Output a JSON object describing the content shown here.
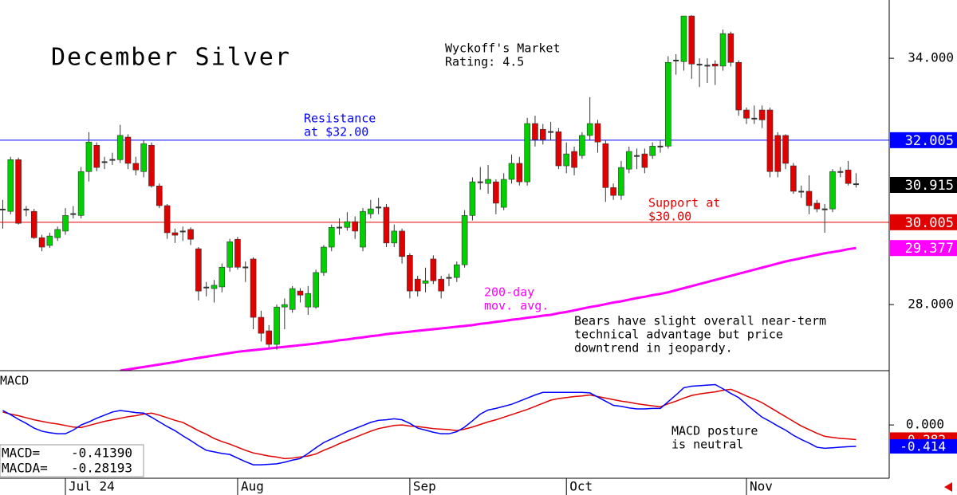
{
  "chart_data": [
    {
      "type": "candlestick",
      "title": "December Silver",
      "up_color": "#00d000",
      "down_color": "#e00000",
      "categories": [
        null,
        null,
        null,
        null,
        null,
        null,
        null,
        null,
        "Jul 24",
        null,
        null,
        null,
        null,
        null,
        null,
        null,
        null,
        null,
        null,
        null,
        null,
        null,
        null,
        null,
        null,
        null,
        null,
        null,
        null,
        null,
        "Aug",
        null,
        null,
        null,
        null,
        null,
        null,
        null,
        null,
        null,
        null,
        null,
        null,
        null,
        null,
        null,
        null,
        null,
        null,
        null,
        null,
        null,
        "Sep",
        null,
        null,
        null,
        null,
        null,
        null,
        null,
        null,
        null,
        null,
        null,
        null,
        null,
        null,
        null,
        null,
        null,
        null,
        null,
        "Oct",
        null,
        null,
        null,
        null,
        null,
        null,
        null,
        null,
        null,
        null,
        null,
        null,
        null,
        null,
        null,
        null,
        null,
        null,
        null,
        null,
        null,
        null,
        "Nov",
        null,
        null,
        null,
        null,
        null,
        null,
        null,
        null,
        null,
        null,
        null,
        null,
        null,
        null
      ],
      "open": [
        30.3,
        30.27,
        31.53,
        30.3,
        30.27,
        29.63,
        29.44,
        29.63,
        29.79,
        30.2,
        30.17,
        31.24,
        31.88,
        31.46,
        31.52,
        31.53,
        32.08,
        31.44,
        31.24,
        31.88,
        30.89,
        30.41,
        29.75,
        29.77,
        29.83,
        29.36,
        28.4,
        28.39,
        28.43,
        28.91,
        29.59,
        28.9,
        29.11,
        27.69,
        27.36,
        27.03,
        27.94,
        27.88,
        28.33,
        27.94,
        27.94,
        28.78,
        29.4,
        29.87,
        29.88,
        30.02,
        29.4,
        30.21,
        30.36,
        30.37,
        29.5,
        29.79,
        29.2,
        28.62,
        28.52,
        29.11,
        28.62,
        28.64,
        28.66,
        28.97,
        30.17,
        30.97,
        30.95,
        30.99,
        30.37,
        31.05,
        31.44,
        30.99,
        32.41,
        32.27,
        32.2,
        32.21,
        31.38,
        31.73,
        31.63,
        32.12,
        32.41,
        31.92,
        30.85,
        30.66,
        31.3,
        31.61,
        31.67,
        31.63,
        31.84,
        31.86,
        33.93,
        33.92,
        35.03,
        33.86,
        33.81,
        33.86,
        33.81,
        34.6,
        33.9,
        32.74,
        32.52,
        32.74,
        32.74,
        32.12,
        32.12,
        31.38,
        30.74,
        30.76,
        30.47,
        30.31,
        30.33,
        31.22,
        31.28,
        30.95
      ],
      "high": [
        30.55,
        31.6,
        31.58,
        30.4,
        30.33,
        29.7,
        29.75,
        29.9,
        30.35,
        30.4,
        31.35,
        32.2,
        31.95,
        31.6,
        31.7,
        32.38,
        32.15,
        31.6,
        32.0,
        31.95,
        30.95,
        30.45,
        29.85,
        29.9,
        29.88,
        29.4,
        28.55,
        28.6,
        29.0,
        29.6,
        29.65,
        29.05,
        29.15,
        27.85,
        27.5,
        28.0,
        28.15,
        28.45,
        28.4,
        28.45,
        28.85,
        29.45,
        29.95,
        30.1,
        30.25,
        30.15,
        30.35,
        30.55,
        30.6,
        30.45,
        29.95,
        29.85,
        29.25,
        28.7,
        28.9,
        29.2,
        28.7,
        28.75,
        29.05,
        30.3,
        31.1,
        31.35,
        31.4,
        31.05,
        31.2,
        31.65,
        31.6,
        32.55,
        32.6,
        32.4,
        32.45,
        32.3,
        31.95,
        31.85,
        32.2,
        33.05,
        32.5,
        32.0,
        30.95,
        31.5,
        31.85,
        31.8,
        31.8,
        31.95,
        32.0,
        34.05,
        34.1,
        35.03,
        35.05,
        34.0,
        34.0,
        33.95,
        34.7,
        34.65,
        33.95,
        32.8,
        32.85,
        32.85,
        32.8,
        32.2,
        32.15,
        31.45,
        30.9,
        31.15,
        30.55,
        30.45,
        31.3,
        31.35,
        31.5,
        31.2
      ],
      "low": [
        29.85,
        30.2,
        29.95,
        30.15,
        29.6,
        29.3,
        29.38,
        29.55,
        29.7,
        30.1,
        30.1,
        31.0,
        31.25,
        31.3,
        31.4,
        31.45,
        31.3,
        31.15,
        31.1,
        30.85,
        30.35,
        29.6,
        29.5,
        29.55,
        29.45,
        28.1,
        28.2,
        28.05,
        28.3,
        28.8,
        28.85,
        28.55,
        27.4,
        27.1,
        26.95,
        26.9,
        27.4,
        27.8,
        28.05,
        27.75,
        27.9,
        28.7,
        29.3,
        29.7,
        29.8,
        29.6,
        29.3,
        30.1,
        30.2,
        29.4,
        29.4,
        29.0,
        28.15,
        28.2,
        28.3,
        28.5,
        28.15,
        28.45,
        28.55,
        28.9,
        30.05,
        30.8,
        30.7,
        30.2,
        30.3,
        30.95,
        30.9,
        30.9,
        31.85,
        31.9,
        32.0,
        31.3,
        31.2,
        31.15,
        31.55,
        32.0,
        31.7,
        30.5,
        30.55,
        30.55,
        31.2,
        31.3,
        31.2,
        31.55,
        31.7,
        31.8,
        33.6,
        33.7,
        33.5,
        33.3,
        33.4,
        33.35,
        33.7,
        33.8,
        32.6,
        32.4,
        32.4,
        32.3,
        31.1,
        31.1,
        31.3,
        30.7,
        30.6,
        30.2,
        30.25,
        29.75,
        30.25,
        31.1,
        30.9,
        30.85
      ],
      "close": [
        30.33,
        31.53,
        29.98,
        30.33,
        29.63,
        29.4,
        29.67,
        29.83,
        30.17,
        30.21,
        31.24,
        31.96,
        31.34,
        31.48,
        31.53,
        32.12,
        31.44,
        31.28,
        31.92,
        30.89,
        30.41,
        29.75,
        29.69,
        29.79,
        29.59,
        28.33,
        28.43,
        28.47,
        28.91,
        29.53,
        28.91,
        28.91,
        27.69,
        27.3,
        27.03,
        27.94,
        28.0,
        28.39,
        28.23,
        28.27,
        28.78,
        29.4,
        29.88,
        29.88,
        30.02,
        29.79,
        30.27,
        30.33,
        30.37,
        29.5,
        29.79,
        29.17,
        28.33,
        28.33,
        28.58,
        28.58,
        28.33,
        28.66,
        28.97,
        30.17,
        30.99,
        30.99,
        31.05,
        30.47,
        31.05,
        31.44,
        30.99,
        32.41,
        32.02,
        32.02,
        32.21,
        31.38,
        31.67,
        31.34,
        32.12,
        32.41,
        31.96,
        30.85,
        30.66,
        31.34,
        31.73,
        31.63,
        31.34,
        31.86,
        31.86,
        33.9,
        33.96,
        35.03,
        33.86,
        33.83,
        33.83,
        33.81,
        34.6,
        33.9,
        32.74,
        32.54,
        32.54,
        32.5,
        31.24,
        31.24,
        31.44,
        30.76,
        30.76,
        30.41,
        30.33,
        30.33,
        31.24,
        31.24,
        30.95,
        30.915
      ],
      "series": [
        {
          "name": "200-day mov. avg.",
          "color": "#ff00ff",
          "values": [
            null,
            null,
            null,
            null,
            null,
            null,
            null,
            null,
            null,
            null,
            null,
            null,
            null,
            null,
            null,
            26.39,
            26.42,
            26.45,
            26.48,
            26.51,
            26.54,
            26.57,
            26.6,
            26.64,
            26.67,
            26.7,
            26.73,
            26.76,
            26.79,
            26.82,
            26.85,
            26.87,
            26.89,
            26.91,
            26.93,
            26.95,
            26.97,
            26.99,
            27.01,
            27.03,
            27.05,
            27.08,
            27.1,
            27.13,
            27.15,
            27.18,
            27.2,
            27.23,
            27.25,
            27.28,
            27.3,
            27.32,
            27.34,
            27.36,
            27.38,
            27.4,
            27.42,
            27.44,
            27.46,
            27.48,
            27.5,
            27.53,
            27.55,
            27.58,
            27.6,
            27.63,
            27.65,
            27.68,
            27.7,
            27.73,
            27.75,
            27.79,
            27.82,
            27.86,
            27.9,
            27.94,
            27.97,
            28.01,
            28.05,
            28.08,
            28.12,
            28.16,
            28.19,
            28.23,
            28.26,
            28.3,
            28.35,
            28.4,
            28.45,
            28.5,
            28.55,
            28.6,
            28.65,
            28.7,
            28.75,
            28.8,
            28.85,
            28.9,
            28.95,
            29.0,
            29.05,
            29.09,
            29.13,
            29.17,
            29.21,
            29.25,
            29.28,
            29.31,
            29.35,
            29.377
          ]
        }
      ],
      "hlines": [
        {
          "value": 32.005,
          "color": "#0000ff"
        },
        {
          "value": 30.005,
          "color": "#e00000"
        }
      ],
      "last_box_color": "#000000",
      "ylim": [
        26.39,
        35.42
      ],
      "yticks": [
        {
          "value": 34,
          "label": "34.000"
        },
        {
          "value": 28,
          "label": "28.000"
        }
      ],
      "annotations": [
        {
          "lines": [
            "Wyckoff's Market",
            "Rating: 4.5"
          ],
          "color": "#000000"
        },
        {
          "lines": [
            "Resistance",
            "at $32.00"
          ],
          "color": "#0000ff"
        },
        {
          "lines": [
            "Support at",
            "$30.00"
          ],
          "color": "#e00000"
        },
        {
          "lines": [
            "200-day",
            "mov. avg."
          ],
          "color": "#ff00ff"
        },
        {
          "lines": [
            "Bears have slight overall near-term",
            "technical advantage but price",
            "downtrend in jeopardy."
          ],
          "color": "#000000"
        }
      ]
    },
    {
      "type": "line",
      "title": "MACD",
      "series": [
        {
          "name": "MACD=",
          "legend_value": "-0.41390",
          "end_label": "-0.414",
          "color": "#0000ff",
          "values": [
            0.28,
            0.2,
            0.11,
            0.03,
            -0.06,
            -0.12,
            -0.15,
            -0.17,
            -0.17,
            -0.1,
            0.0,
            0.06,
            0.13,
            0.19,
            0.25,
            0.28,
            0.26,
            0.24,
            0.23,
            0.15,
            0.06,
            -0.03,
            -0.11,
            -0.21,
            -0.3,
            -0.4,
            -0.49,
            -0.52,
            -0.55,
            -0.57,
            -0.64,
            -0.71,
            -0.77,
            -0.77,
            -0.76,
            -0.75,
            -0.72,
            -0.68,
            -0.65,
            -0.55,
            -0.44,
            -0.34,
            -0.27,
            -0.2,
            -0.13,
            -0.07,
            -0.01,
            0.05,
            0.09,
            0.1,
            0.12,
            0.1,
            0.03,
            -0.06,
            -0.1,
            -0.14,
            -0.17,
            -0.17,
            -0.13,
            -0.04,
            0.08,
            0.21,
            0.29,
            0.32,
            0.36,
            0.4,
            0.46,
            0.52,
            0.58,
            0.63,
            0.63,
            0.63,
            0.63,
            0.63,
            0.63,
            0.62,
            0.54,
            0.46,
            0.38,
            0.36,
            0.33,
            0.31,
            0.31,
            0.32,
            0.32,
            0.45,
            0.58,
            0.72,
            0.75,
            0.76,
            0.77,
            0.78,
            0.7,
            0.61,
            0.53,
            0.4,
            0.27,
            0.15,
            0.07,
            -0.02,
            -0.1,
            -0.2,
            -0.28,
            -0.35,
            -0.43,
            -0.45,
            -0.44,
            -0.43,
            -0.42,
            -0.4139
          ]
        },
        {
          "name": "MACDA=",
          "legend_value": "-0.28193",
          "end_label": "-0.282",
          "color": "#e00000",
          "values": [
            0.25,
            0.21,
            0.18,
            0.14,
            0.1,
            0.07,
            0.04,
            0.02,
            -0.01,
            -0.04,
            -0.05,
            -0.01,
            0.03,
            0.07,
            0.1,
            0.13,
            0.16,
            0.18,
            0.21,
            0.23,
            0.19,
            0.14,
            0.09,
            0.05,
            -0.03,
            -0.11,
            -0.18,
            -0.26,
            -0.32,
            -0.37,
            -0.43,
            -0.49,
            -0.54,
            -0.57,
            -0.6,
            -0.62,
            -0.65,
            -0.64,
            -0.62,
            -0.6,
            -0.56,
            -0.49,
            -0.43,
            -0.36,
            -0.3,
            -0.24,
            -0.18,
            -0.12,
            -0.07,
            -0.04,
            -0.01,
            0.0,
            -0.02,
            -0.03,
            -0.05,
            -0.07,
            -0.08,
            -0.09,
            -0.11,
            -0.08,
            -0.04,
            0.01,
            0.06,
            0.1,
            0.15,
            0.2,
            0.25,
            0.3,
            0.36,
            0.42,
            0.48,
            0.51,
            0.53,
            0.55,
            0.56,
            0.58,
            0.55,
            0.52,
            0.49,
            0.46,
            0.44,
            0.41,
            0.39,
            0.37,
            0.35,
            0.41,
            0.46,
            0.52,
            0.57,
            0.6,
            0.62,
            0.64,
            0.67,
            0.69,
            0.63,
            0.56,
            0.5,
            0.43,
            0.34,
            0.25,
            0.16,
            0.07,
            -0.02,
            -0.09,
            -0.16,
            -0.22,
            -0.24,
            -0.26,
            -0.27,
            -0.28193
          ]
        }
      ],
      "ylim": [
        -1.03,
        1.05
      ],
      "yticks": [
        {
          "value": 0,
          "label": "0.000"
        }
      ],
      "annotations": [
        {
          "lines": [
            "MACD posture",
            "is neutral"
          ],
          "color": "#000000"
        }
      ]
    }
  ]
}
